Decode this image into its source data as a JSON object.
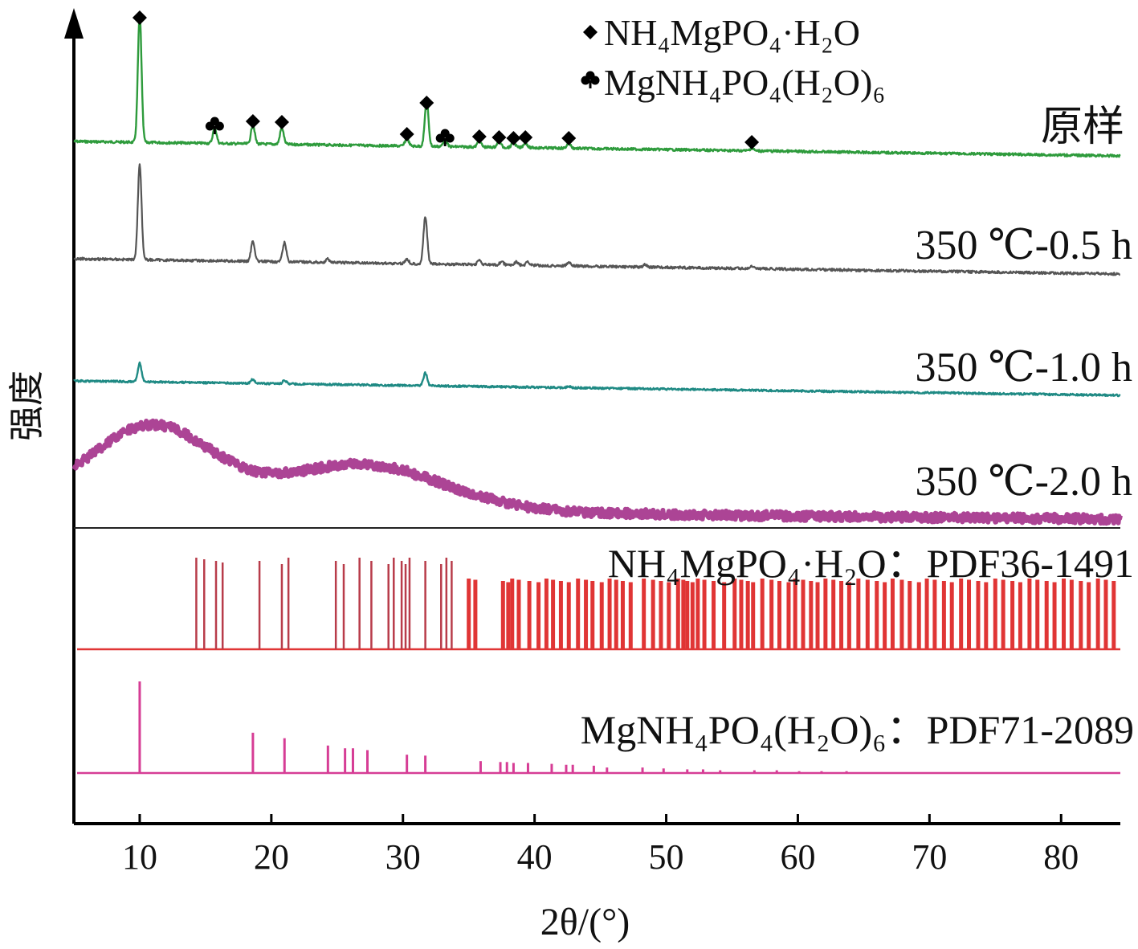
{
  "chart_data": {
    "type": "line",
    "xlabel": "2θ/(°)",
    "ylabel": "强度",
    "xlim": [
      5,
      84.5
    ],
    "x_ticks": [
      10,
      20,
      30,
      40,
      50,
      60,
      70,
      80
    ],
    "grid": false,
    "legend": {
      "placement": "top-right",
      "entries": [
        {
          "marker": "diamond",
          "text": "NH₄MgPO₄·H₂O"
        },
        {
          "marker": "club",
          "text": "MgNH₄PO₄(H₂O)₆"
        }
      ]
    },
    "colors": {
      "original": "#2e9b3c",
      "t05": "#555555",
      "t10": "#1f8a84",
      "t20": "#a83a8f",
      "pdf36": "#e03535",
      "pdf71": "#d63d95"
    },
    "series": [
      {
        "name": "原样",
        "key": "original",
        "peaks": [
          {
            "x": 10.0,
            "h": 1.0
          },
          {
            "x": 15.7,
            "h": 0.12
          },
          {
            "x": 18.6,
            "h": 0.15
          },
          {
            "x": 20.8,
            "h": 0.13
          },
          {
            "x": 30.3,
            "h": 0.06
          },
          {
            "x": 31.8,
            "h": 0.36
          },
          {
            "x": 33.2,
            "h": 0.05
          },
          {
            "x": 35.8,
            "h": 0.05
          },
          {
            "x": 37.3,
            "h": 0.05
          },
          {
            "x": 38.4,
            "h": 0.04
          },
          {
            "x": 39.3,
            "h": 0.04
          },
          {
            "x": 42.6,
            "h": 0.04
          },
          {
            "x": 56.5,
            "h": 0.02
          }
        ]
      },
      {
        "name": "350 ℃-0.5 h",
        "key": "t05",
        "peaks": [
          {
            "x": 10.0,
            "h": 0.85
          },
          {
            "x": 18.6,
            "h": 0.18
          },
          {
            "x": 21.0,
            "h": 0.17
          },
          {
            "x": 24.3,
            "h": 0.03
          },
          {
            "x": 30.3,
            "h": 0.04
          },
          {
            "x": 31.7,
            "h": 0.42
          },
          {
            "x": 35.8,
            "h": 0.04
          },
          {
            "x": 37.5,
            "h": 0.03
          },
          {
            "x": 38.6,
            "h": 0.03
          },
          {
            "x": 39.5,
            "h": 0.03
          },
          {
            "x": 42.6,
            "h": 0.03
          },
          {
            "x": 48.4,
            "h": 0.02
          },
          {
            "x": 56.5,
            "h": 0.02
          }
        ]
      },
      {
        "name": "350 ℃-1.0 h",
        "key": "t10",
        "peaks": [
          {
            "x": 10.0,
            "h": 0.32
          },
          {
            "x": 18.6,
            "h": 0.07
          },
          {
            "x": 21.0,
            "h": 0.06
          },
          {
            "x": 31.7,
            "h": 0.22
          },
          {
            "x": 42.6,
            "h": 0.02
          }
        ]
      },
      {
        "name": "350 ℃-2.0 h",
        "key": "t20",
        "peaks": []
      }
    ],
    "reference_patterns": [
      {
        "name": "NH₄MgPO₄·H₂O：PDF36-1491",
        "key": "pdf36",
        "lines": [
          14.3,
          14.9,
          15.8,
          16.3,
          19.1,
          20.8,
          21.3,
          24.9,
          25.5,
          26.7,
          27.6,
          28.9,
          29.3,
          29.9,
          30.2,
          30.5,
          31.7,
          32.9,
          33.3,
          33.7,
          35.0,
          35.5,
          37.6,
          38.0,
          38.3,
          38.8,
          39.6,
          40.3,
          40.9,
          41.4,
          42.0,
          42.6,
          43.3,
          43.9,
          44.4,
          45.1,
          45.7,
          46.2,
          46.7,
          47.3,
          48.3,
          49.0,
          49.6,
          50.2,
          50.9,
          51.3,
          51.6,
          52.0,
          52.4,
          52.9,
          53.6,
          54.4,
          55.2,
          55.7,
          56.2,
          56.6,
          57.3,
          58.0,
          58.6,
          59.3,
          59.8,
          60.4,
          61.0,
          61.5,
          62.1,
          62.7,
          63.3,
          63.9,
          64.6,
          65.3,
          66.0,
          66.6,
          67.2,
          67.9,
          68.5,
          69.2,
          69.8,
          70.4,
          71.1,
          71.7,
          72.4,
          73.0,
          73.7,
          74.3,
          75.0,
          75.6,
          76.3,
          76.9,
          77.6,
          78.2,
          78.9,
          79.5,
          80.2,
          80.8,
          81.5,
          82.1,
          82.8,
          83.4,
          84.0
        ]
      },
      {
        "name": "MgNH₄PO₄(H₂O)₆：PDF71-2089",
        "key": "pdf71",
        "lines": [
          {
            "x": 10.0,
            "h": 1.0
          },
          {
            "x": 18.6,
            "h": 0.44
          },
          {
            "x": 21.0,
            "h": 0.38
          },
          {
            "x": 24.3,
            "h": 0.3
          },
          {
            "x": 25.6,
            "h": 0.27
          },
          {
            "x": 26.2,
            "h": 0.27
          },
          {
            "x": 27.3,
            "h": 0.25
          },
          {
            "x": 30.3,
            "h": 0.2
          },
          {
            "x": 31.7,
            "h": 0.19
          },
          {
            "x": 35.9,
            "h": 0.13
          },
          {
            "x": 37.4,
            "h": 0.12
          },
          {
            "x": 37.9,
            "h": 0.12
          },
          {
            "x": 38.4,
            "h": 0.11
          },
          {
            "x": 39.5,
            "h": 0.11
          },
          {
            "x": 41.3,
            "h": 0.1
          },
          {
            "x": 42.4,
            "h": 0.09
          },
          {
            "x": 42.9,
            "h": 0.09
          },
          {
            "x": 44.5,
            "h": 0.08
          },
          {
            "x": 45.5,
            "h": 0.06
          },
          {
            "x": 48.2,
            "h": 0.06
          },
          {
            "x": 49.8,
            "h": 0.05
          },
          {
            "x": 51.6,
            "h": 0.04
          },
          {
            "x": 52.8,
            "h": 0.04
          },
          {
            "x": 54.1,
            "h": 0.03
          },
          {
            "x": 56.7,
            "h": 0.03
          },
          {
            "x": 58.4,
            "h": 0.03
          },
          {
            "x": 60.1,
            "h": 0.02
          },
          {
            "x": 61.8,
            "h": 0.02
          },
          {
            "x": 63.7,
            "h": 0.02
          }
        ]
      }
    ]
  }
}
